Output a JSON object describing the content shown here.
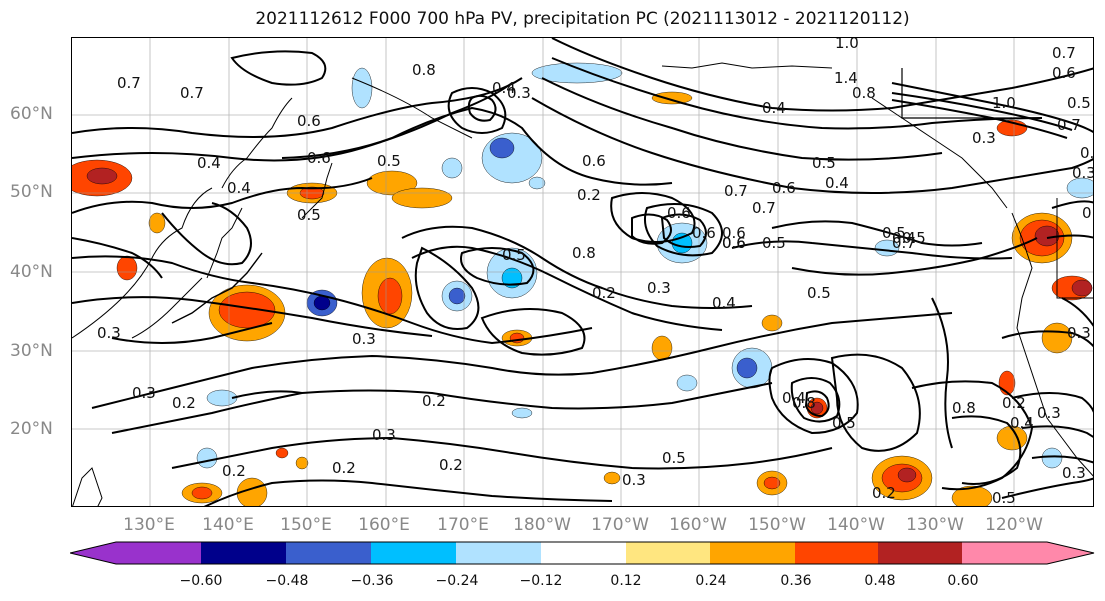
{
  "title": "2021112612 F000 700 hPa PV, precipitation PC (2021113012 - 2021120112)",
  "lat_labels": [
    "60°N",
    "50°N",
    "40°N",
    "30°N",
    "20°N"
  ],
  "lon_labels": [
    "130°E",
    "140°E",
    "150°E",
    "160°E",
    "170°E",
    "180°W",
    "170°W",
    "160°W",
    "150°W",
    "140°W",
    "130°W",
    "120°W"
  ],
  "colorbar": {
    "colors": [
      "#9932CC",
      "#00008B",
      "#3A5FCD",
      "#00BFFF",
      "#B0E2FF",
      "#FFFFFF",
      "#FFE680",
      "#FFA500",
      "#FF4500",
      "#B22222",
      "#FF88AA"
    ],
    "tick_labels": [
      "−0.60",
      "−0.48",
      "−0.36",
      "−0.24",
      "−0.12",
      "0.12",
      "0.24",
      "0.36",
      "0.48",
      "0.60"
    ]
  },
  "contour_labels": [
    "0.7",
    "0.7",
    "0.6",
    "0.6",
    "0.5",
    "0.5",
    "0.4",
    "0.4",
    "0.3",
    "0.3",
    "0.2",
    "0.2",
    "0.2",
    "0.2",
    "0.2",
    "0.3",
    "0.3",
    "0.4",
    "0.5",
    "0.6",
    "0.6",
    "0.6",
    "0.7",
    "0.8",
    "1.0",
    "1.4",
    "0.8",
    "1.0",
    "0.7",
    "0.5",
    "0.4",
    "0.3",
    "0.3",
    "0.5",
    "0.4",
    "0.5",
    "0.7",
    "0.3",
    "0.3",
    "0.2",
    "0.3",
    "0.4",
    "0.5",
    "0.5",
    "0.8",
    "0.7",
    "0.6",
    "0.5",
    "0.6",
    "0.2",
    "0.4",
    "0.6",
    "0.3",
    "0.4",
    "0.2",
    "0.3",
    "0.6",
    "0.5",
    "0.8",
    "0.8",
    "0.4",
    "0.7",
    "0.6",
    "0.5",
    "0.3",
    "0.2",
    "0.3",
    "0.5",
    "0.2"
  ]
}
